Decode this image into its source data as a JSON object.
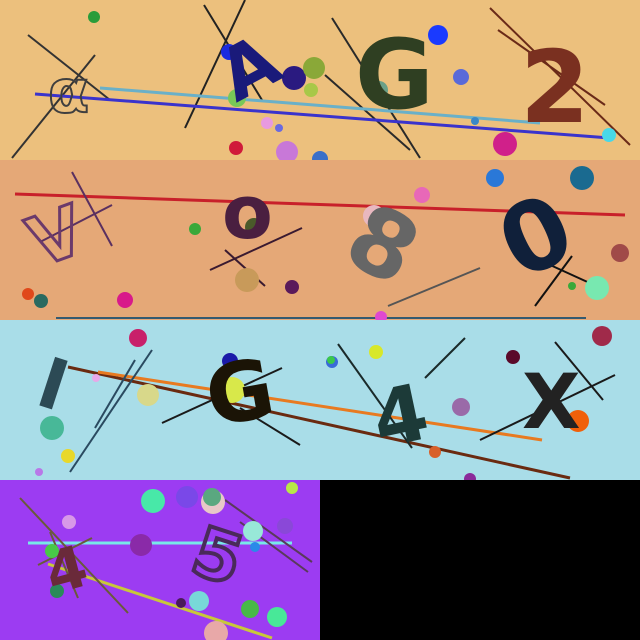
{
  "bands": [
    {
      "id": "captcha-1",
      "bg": "#ecc07d",
      "chars": [
        "α",
        "A",
        "G",
        "2"
      ],
      "colors": [
        "#3f3f3f",
        "#1a1a7a",
        "#2f3f22",
        "#7a3020"
      ]
    },
    {
      "id": "captcha-2",
      "bg": "#e5a877",
      "chars": [
        "V",
        "o",
        "8",
        "0"
      ],
      "colors": [
        "#6b3a6b",
        "#4a1f40",
        "#666666",
        "#10203a"
      ]
    },
    {
      "id": "captcha-3",
      "bg": "#a9dde8",
      "chars": [
        "I",
        "G",
        "4",
        "X"
      ],
      "colors": [
        "#2c4a55",
        "#1b1406",
        "#1c3a38",
        "#222222"
      ]
    },
    {
      "id": "captcha-4",
      "bg": "#9c3cf2",
      "chars": [
        "4",
        "5"
      ],
      "colors": [
        "#6a2a3a",
        "#4a2a5a"
      ]
    }
  ]
}
